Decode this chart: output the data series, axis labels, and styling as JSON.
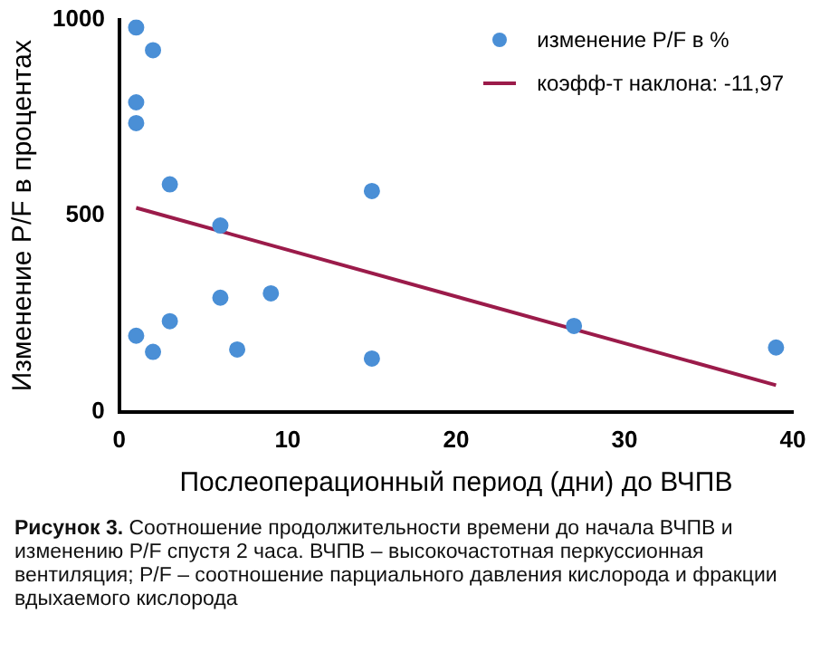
{
  "chart_data": {
    "type": "scatter",
    "xlabel": "Послеоперационный период (дни) до ВЧПВ",
    "ylabel": "Изменение P/F в процентах",
    "xlim": [
      0,
      40
    ],
    "xticks": [
      0,
      10,
      20,
      30,
      40
    ],
    "ylim": [
      0,
      1000
    ],
    "yticks": [
      0,
      500,
      1000
    ],
    "grid": false,
    "legend": "top right",
    "series": [
      {
        "name": "изменение P/F в %",
        "marker": "circle",
        "color": "#4a8fd6",
        "x": [
          1,
          2,
          1,
          1,
          3,
          15,
          6,
          6,
          9,
          3,
          1,
          2,
          7,
          15,
          27,
          39
        ],
        "values": [
          980,
          922,
          789,
          736,
          580,
          563,
          475,
          291,
          302,
          231,
          194,
          153,
          159,
          136,
          219,
          164
        ]
      },
      {
        "name": "коэфф-т наклона: -11,97",
        "type": "line",
        "marker": "none",
        "color": "#9b1b4a",
        "x": [
          1,
          39
        ],
        "values": [
          520,
          68
        ]
      }
    ],
    "annotations": [
      "Рисунок 3.",
      "Соотношение продолжительности времени до начала ВЧПВ и изменению P/F спустя 2 часа. ВЧПВ – высокочастотная перкуссионная вентиляция; P/F – соотношение парциального давления кислорода и фракции вдыхаемого кислорода"
    ]
  }
}
